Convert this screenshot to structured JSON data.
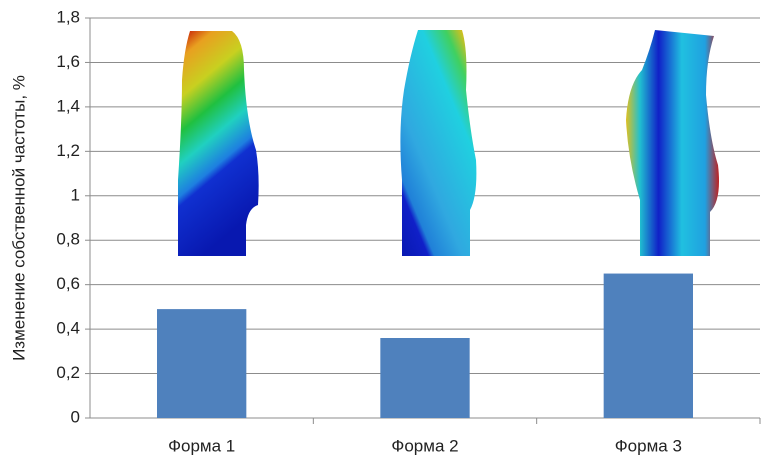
{
  "chart_data": {
    "type": "bar",
    "y_label": "Изменение собственной частоты, %",
    "categories": [
      "Форма 1",
      "Форма 2",
      "Форма 3"
    ],
    "values": [
      0.49,
      0.36,
      0.65
    ],
    "color": "#4f81bd",
    "ylim": [
      0,
      1.8
    ],
    "yticks": [
      0,
      {
        "value": 0.2,
        "label": "0,2"
      },
      {
        "value": 0.4,
        "label": "0,4"
      },
      {
        "value": 0.6,
        "label": "0,6"
      },
      {
        "value": 0.8,
        "label": "0,8"
      },
      1,
      {
        "value": 1.2,
        "label": "1,2"
      },
      {
        "value": 1.4,
        "label": "1,4"
      },
      {
        "value": 1.6,
        "label": "1,6"
      },
      {
        "value": 1.8,
        "label": "1,8"
      }
    ],
    "grid": true
  }
}
